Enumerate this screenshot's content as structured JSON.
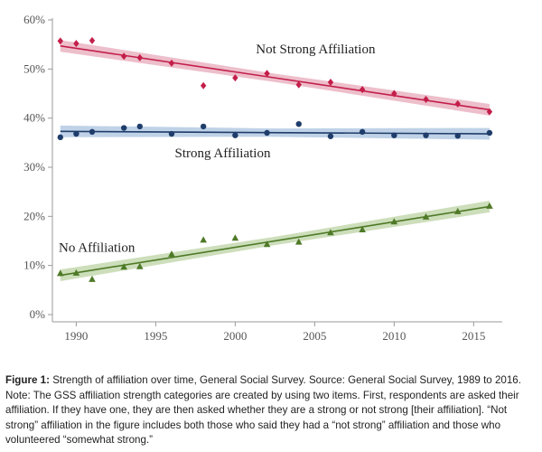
{
  "chart_data": {
    "type": "scatter",
    "x_ticks": [
      1990,
      1995,
      2000,
      2005,
      2010,
      2015
    ],
    "y_ticks": [
      0,
      10,
      20,
      30,
      40,
      50,
      60
    ],
    "y_tick_labels": [
      "0%",
      "10%",
      "20%",
      "30%",
      "40%",
      "50%",
      "60%"
    ],
    "xlim": [
      1988.5,
      2016.8
    ],
    "ylim": [
      0,
      60
    ],
    "series": [
      {
        "name": "Not Strong Affiliation",
        "color": "#c41e4a",
        "band_color": "#e7a9b9",
        "marker": "diamond",
        "x": [
          1989,
          1990,
          1991,
          1993,
          1994,
          1996,
          1998,
          2000,
          2002,
          2004,
          2006,
          2008,
          2010,
          2012,
          2014,
          2016
        ],
        "values": [
          55.7,
          55.2,
          55.8,
          52.6,
          52.3,
          51.2,
          46.6,
          48.2,
          49.1,
          46.8,
          47.3,
          45.8,
          45.0,
          43.8,
          42.9,
          41.3
        ],
        "fit": [
          54.7,
          41.7
        ]
      },
      {
        "name": "Strong Affiliation",
        "color": "#1f3d6b",
        "band_color": "#a9c3df",
        "marker": "circle",
        "x": [
          1989,
          1990,
          1991,
          1993,
          1994,
          1996,
          1998,
          2000,
          2002,
          2004,
          2006,
          2008,
          2010,
          2012,
          2014,
          2016
        ],
        "values": [
          36.1,
          36.8,
          37.2,
          38.0,
          38.3,
          36.8,
          38.3,
          36.5,
          37.0,
          38.8,
          36.3,
          37.2,
          36.5,
          36.5,
          36.4,
          37.0
        ],
        "fit": [
          37.3,
          36.8
        ]
      },
      {
        "name": "No Affiliation",
        "color": "#4e7a27",
        "band_color": "#bcd3a4",
        "marker": "triangle",
        "x": [
          1989,
          1990,
          1991,
          1993,
          1994,
          1996,
          1998,
          2000,
          2002,
          2004,
          2006,
          2008,
          2010,
          2012,
          2014,
          2016
        ],
        "values": [
          8.4,
          8.5,
          7.2,
          9.7,
          9.8,
          12.3,
          15.2,
          15.6,
          14.3,
          14.8,
          16.7,
          17.3,
          18.9,
          19.9,
          21.0,
          22.1
        ],
        "fit": [
          8.0,
          22.0
        ]
      }
    ],
    "labels": [
      {
        "text": "Not Strong Affiliation",
        "series": 0,
        "x": 2001.3,
        "y": 53.2
      },
      {
        "text": "Strong Affiliation",
        "series": 1,
        "x": 1996.2,
        "y": 32.0
      },
      {
        "text": "No Affiliation",
        "series": 2,
        "x": 1988.9,
        "y": 12.8
      }
    ]
  },
  "caption": {
    "lead": "Figure 1:",
    "text": " Strength of affiliation over time, General Social Survey. Source: General Social Survey, 1989 to 2016. Note: The GSS affiliation strength categories are created by using two items. First, respondents are asked their affiliation. If they have one, they are then asked whether they are a strong or not strong [their affiliation]. “Not strong” affiliation in the figure includes both those who said they had a “not strong” affiliation and those who volunteered “somewhat strong.”"
  }
}
